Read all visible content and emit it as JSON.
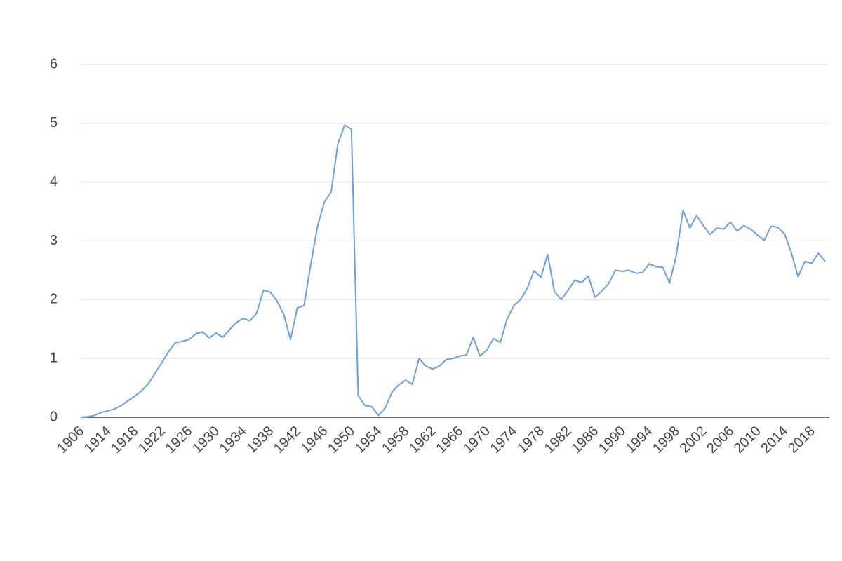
{
  "chart_data": {
    "type": "line",
    "categories": [
      "1906",
      null,
      null,
      null,
      "1914",
      null,
      null,
      null,
      "1918",
      null,
      null,
      null,
      "1922",
      null,
      null,
      null,
      "1926",
      null,
      null,
      null,
      "1930",
      null,
      null,
      null,
      "1934",
      null,
      null,
      null,
      "1938",
      null,
      null,
      null,
      "1942",
      null,
      null,
      null,
      "1946",
      null,
      null,
      null,
      "1950",
      null,
      null,
      null,
      "1954",
      null,
      null,
      null,
      "1958",
      null,
      null,
      null,
      "1962",
      null,
      null,
      null,
      "1966",
      null,
      null,
      null,
      "1970",
      null,
      null,
      null,
      "1974",
      null,
      null,
      null,
      "1978",
      null,
      null,
      null,
      "1982",
      null,
      null,
      null,
      "1986",
      null,
      null,
      null,
      "1990",
      null,
      null,
      null,
      "1994",
      null,
      null,
      null,
      "1998",
      null,
      null,
      null,
      "2002",
      null,
      null,
      null,
      "2006",
      null,
      null,
      null,
      "2010",
      null,
      null,
      null,
      "2014",
      null,
      null,
      null,
      "2018",
      null,
      null
    ],
    "series": [
      {
        "color": "#6f9fd8",
        "values": [
          0.0,
          0.01,
          0.03,
          0.08,
          0.11,
          0.14,
          0.2,
          0.28,
          0.36,
          0.45,
          0.57,
          0.75,
          0.93,
          1.12,
          1.27,
          1.29,
          1.32,
          1.42,
          1.45,
          1.35,
          1.43,
          1.36,
          1.49,
          1.61,
          1.68,
          1.64,
          1.77,
          2.16,
          2.13,
          1.98,
          1.75,
          1.32,
          1.86,
          1.9,
          2.6,
          3.25,
          3.66,
          3.83,
          4.65,
          4.97,
          4.9,
          0.37,
          0.2,
          0.18,
          0.03,
          0.16,
          0.43,
          0.55,
          0.63,
          0.56,
          1.0,
          0.87,
          0.82,
          0.87,
          0.98,
          1.0,
          1.04,
          1.06,
          1.36,
          1.04,
          1.14,
          1.34,
          1.27,
          1.67,
          1.9,
          2.0,
          2.2,
          2.49,
          2.38,
          2.77,
          2.14,
          2.0,
          2.16,
          2.33,
          2.29,
          2.4,
          2.04,
          2.15,
          2.27,
          2.5,
          2.48,
          2.5,
          2.45,
          2.46,
          2.61,
          2.56,
          2.55,
          2.28,
          2.75,
          3.52,
          3.22,
          3.43,
          3.26,
          3.11,
          3.22,
          3.2,
          3.32,
          3.17,
          3.26,
          3.2,
          3.1,
          3.01,
          3.25,
          3.23,
          3.12,
          2.8,
          2.39,
          2.65,
          2.62,
          2.79,
          2.65
        ]
      }
    ],
    "ylim": [
      0,
      6
    ],
    "yticks": [
      0,
      1,
      2,
      3,
      4,
      5,
      6
    ],
    "grid": true
  }
}
